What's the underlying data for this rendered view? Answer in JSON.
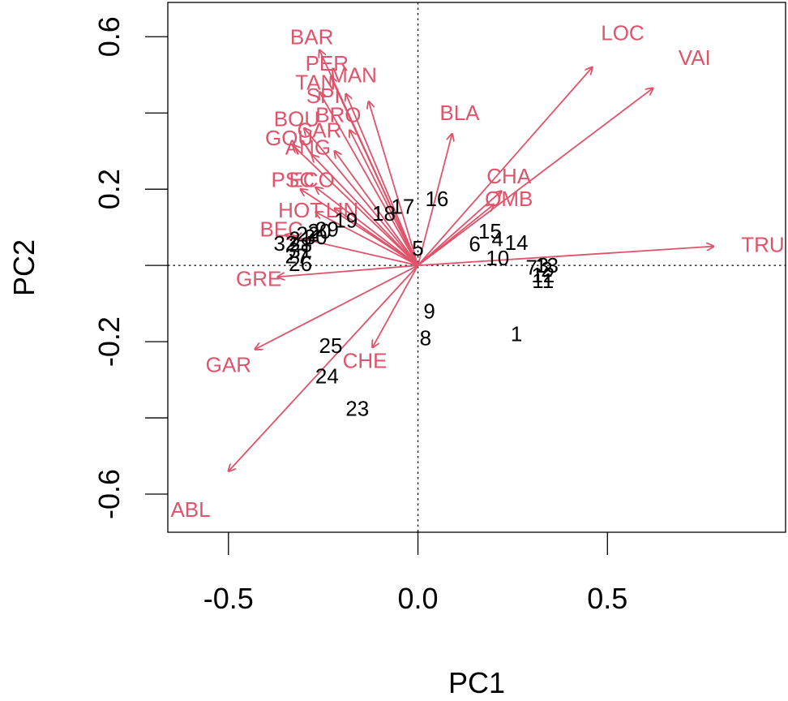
{
  "chart_data": {
    "type": "scatter",
    "xlabel": "PC1",
    "ylabel": "PC2",
    "xlim": [
      -0.66,
      0.97
    ],
    "ylim": [
      -0.7,
      0.69
    ],
    "x_ticks": [
      -0.5,
      0.0,
      0.5
    ],
    "x_tick_labels": [
      "-0.5",
      "0.0",
      "0.5"
    ],
    "y_ticks": [
      -0.6,
      -0.4,
      -0.2,
      0.0,
      0.2,
      0.4,
      0.6
    ],
    "y_tick_labels": [
      "-0.6",
      "-0.2",
      "0.2",
      "0.6"
    ],
    "y_tick_labels_at": [
      -0.6,
      -0.2,
      0.2,
      0.6
    ],
    "grid": false,
    "reference_lines": {
      "x": 0,
      "y": 0
    },
    "colors": {
      "observations": "#000000",
      "variables": "#DF536B"
    },
    "observations": [
      {
        "label": "1",
        "x": 0.26,
        "y": -0.18
      },
      {
        "label": "2",
        "x": 0.34,
        "y": -0.01
      },
      {
        "label": "3",
        "x": 0.33,
        "y": -0.0
      },
      {
        "label": "4",
        "x": 0.21,
        "y": 0.07
      },
      {
        "label": "5",
        "x": 0.0,
        "y": 0.045
      },
      {
        "label": "6",
        "x": 0.15,
        "y": 0.057
      },
      {
        "label": "7",
        "x": 0.3,
        "y": -0.005
      },
      {
        "label": "8",
        "x": 0.02,
        "y": -0.19
      },
      {
        "label": "9",
        "x": 0.03,
        "y": -0.12
      },
      {
        "label": "10",
        "x": 0.21,
        "y": 0.02
      },
      {
        "label": "11",
        "x": 0.33,
        "y": -0.04
      },
      {
        "label": "12",
        "x": 0.33,
        "y": -0.025
      },
      {
        "label": "13",
        "x": 0.34,
        "y": 0.0
      },
      {
        "label": "14",
        "x": 0.26,
        "y": 0.06
      },
      {
        "label": "15",
        "x": 0.19,
        "y": 0.09
      },
      {
        "label": "16",
        "x": 0.05,
        "y": 0.175
      },
      {
        "label": "17",
        "x": -0.04,
        "y": 0.155
      },
      {
        "label": "18",
        "x": -0.09,
        "y": 0.137
      },
      {
        "label": "19",
        "x": -0.19,
        "y": 0.118
      },
      {
        "label": "20",
        "x": -0.26,
        "y": 0.09
      },
      {
        "label": "21",
        "x": -0.31,
        "y": 0.07
      },
      {
        "label": "22",
        "x": -0.29,
        "y": 0.082
      },
      {
        "label": "23",
        "x": -0.16,
        "y": -0.375
      },
      {
        "label": "24",
        "x": -0.24,
        "y": -0.29
      },
      {
        "label": "25",
        "x": -0.23,
        "y": -0.21
      },
      {
        "label": "26",
        "x": -0.31,
        "y": 0.005
      },
      {
        "label": "27",
        "x": -0.32,
        "y": 0.025
      },
      {
        "label": "28",
        "x": -0.31,
        "y": 0.055
      },
      {
        "label": "29",
        "x": -0.24,
        "y": 0.095
      },
      {
        "label": "30",
        "x": -0.27,
        "y": 0.075
      },
      {
        "label": "31",
        "x": -0.31,
        "y": 0.04
      },
      {
        "label": "32",
        "x": -0.35,
        "y": 0.058
      }
    ],
    "variables": [
      {
        "label": "BAR",
        "x": -0.26,
        "y": 0.565,
        "label_x": -0.28,
        "label_y": 0.6
      },
      {
        "label": "PER",
        "x": -0.23,
        "y": 0.495,
        "label_x": -0.24,
        "label_y": 0.53
      },
      {
        "label": "MAN",
        "x": -0.13,
        "y": 0.43,
        "label_x": -0.17,
        "label_y": 0.5
      },
      {
        "label": "TAN",
        "x": -0.26,
        "y": 0.455,
        "label_x": -0.27,
        "label_y": 0.48
      },
      {
        "label": "SPI",
        "x": -0.19,
        "y": 0.45,
        "label_x": -0.25,
        "label_y": 0.445
      },
      {
        "label": "BRO",
        "x": -0.18,
        "y": 0.355,
        "label_x": -0.21,
        "label_y": 0.395
      },
      {
        "label": "BOU",
        "x": -0.3,
        "y": 0.36,
        "label_x": -0.32,
        "label_y": 0.385
      },
      {
        "label": "GOU",
        "x": -0.33,
        "y": 0.315,
        "label_x": -0.34,
        "label_y": 0.335
      },
      {
        "label": "CAR",
        "x": -0.22,
        "y": 0.3,
        "label_x": -0.26,
        "label_y": 0.355
      },
      {
        "label": "ANG",
        "x": -0.28,
        "y": 0.29,
        "label_x": -0.29,
        "label_y": 0.31
      },
      {
        "label": "BLA",
        "x": 0.09,
        "y": 0.345,
        "label_x": 0.11,
        "label_y": 0.4
      },
      {
        "label": "LOC",
        "x": 0.46,
        "y": 0.52,
        "label_x": 0.54,
        "label_y": 0.61
      },
      {
        "label": "VAI",
        "x": 0.62,
        "y": 0.465,
        "label_x": 0.73,
        "label_y": 0.545
      },
      {
        "label": "PSC",
        "x": -0.31,
        "y": 0.2,
        "label_x": -0.33,
        "label_y": 0.225
      },
      {
        "label": "ECO",
        "x": -0.27,
        "y": 0.205,
        "label_x": -0.28,
        "label_y": 0.225
      },
      {
        "label": "CHA",
        "x": 0.22,
        "y": 0.195,
        "label_x": 0.24,
        "label_y": 0.235
      },
      {
        "label": "OMB",
        "x": 0.2,
        "y": 0.16,
        "label_x": 0.24,
        "label_y": 0.175
      },
      {
        "label": "HOT",
        "x": -0.27,
        "y": 0.14,
        "label_x": -0.31,
        "label_y": 0.145
      },
      {
        "label": "LIN",
        "x": -0.22,
        "y": 0.15,
        "label_x": -0.2,
        "label_y": 0.145
      },
      {
        "label": "BEC",
        "x": -0.35,
        "y": 0.08,
        "label_x": -0.36,
        "label_y": 0.095
      },
      {
        "label": "TRU",
        "x": 0.78,
        "y": 0.05,
        "label_x": 0.91,
        "label_y": 0.055
      },
      {
        "label": "GRE",
        "x": -0.37,
        "y": -0.03,
        "label_x": -0.42,
        "label_y": -0.035
      },
      {
        "label": "GAR",
        "x": -0.43,
        "y": -0.22,
        "label_x": -0.5,
        "label_y": -0.26
      },
      {
        "label": "CHE",
        "x": -0.12,
        "y": -0.215,
        "label_x": -0.14,
        "label_y": -0.25
      },
      {
        "label": "ABL",
        "x": -0.5,
        "y": -0.54,
        "label_x": -0.6,
        "label_y": -0.64
      }
    ]
  }
}
